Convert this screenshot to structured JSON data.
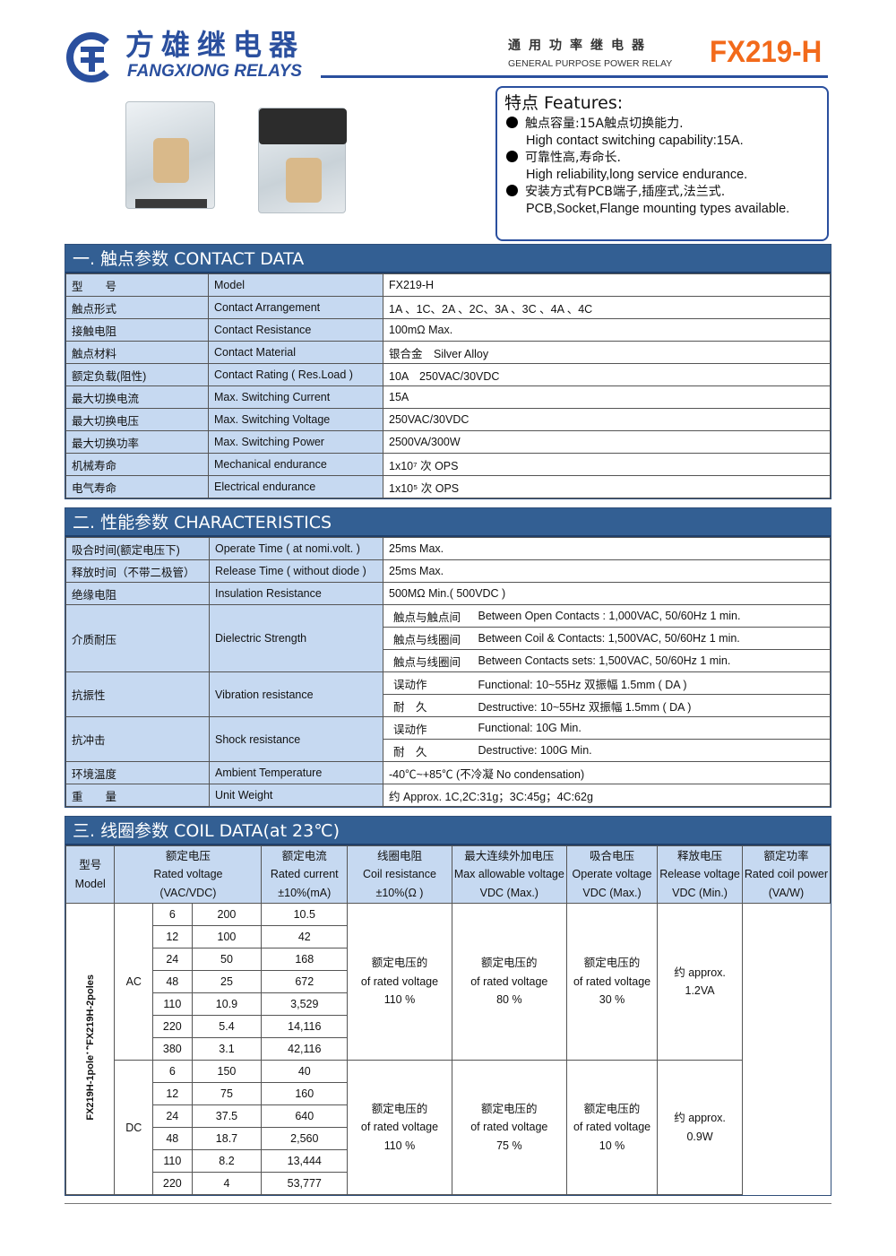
{
  "header": {
    "brand_cn": "方雄继电器",
    "brand_en": "FANGXIONG RELAYS",
    "subtitle_cn": "通用功率继电器",
    "subtitle_en": "GENERAL PURPOSE POWER RELAY",
    "model": "FX219-H",
    "accent": "#f26a1b",
    "brand_color": "#2a4f9e"
  },
  "features": {
    "title": "特点 Features:",
    "items": [
      {
        "cn": "触点容量:15A触点切换能力.",
        "en": "High contact switching capability:15A."
      },
      {
        "cn": "可靠性高,寿命长.",
        "en": "High reliability,long service endurance."
      },
      {
        "cn": "安装方式有PCB端子,插座式,法兰式.",
        "en": "PCB,Socket,Flange mounting types available."
      }
    ]
  },
  "contact": {
    "title": "一. 触点参数 CONTACT DATA",
    "rows": [
      [
        "型　　号",
        "Model",
        "FX219-H"
      ],
      [
        "触点形式",
        "Contact Arrangement",
        "1A 、1C、2A 、2C、3A 、3C 、4A 、4C"
      ],
      [
        "接触电阻",
        "Contact Resistance",
        "100mΩ Max."
      ],
      [
        "触点材料",
        "Contact Material",
        "银合金　Silver Alloy"
      ],
      [
        "额定负载(阻性)",
        "Contact Rating ( Res.Load )",
        "10A　250VAC/30VDC"
      ],
      [
        "最大切换电流",
        "Max. Switching Current",
        "15A"
      ],
      [
        "最大切换电压",
        "Max. Switching Voltage",
        "250VAC/30VDC"
      ],
      [
        "最大切换功率",
        "Max. Switching Power",
        "2500VA/300W"
      ],
      [
        "机械寿命",
        "Mechanical endurance",
        "1x10⁷ 次 OPS"
      ],
      [
        "电气寿命",
        "Electrical endurance",
        "1x10⁵ 次 OPS"
      ]
    ]
  },
  "characteristics": {
    "title": "二. 性能参数 CHARACTERISTICS",
    "rows": [
      {
        "cn": "吸合时间(额定电压下)",
        "en": "Operate Time ( at nomi.volt. )",
        "values": [
          [
            "",
            "25ms Max."
          ]
        ]
      },
      {
        "cn": "释放时间（不带二极管）",
        "en": "Release Time ( without diode )",
        "values": [
          [
            "",
            "25ms Max."
          ]
        ]
      },
      {
        "cn": "绝缘电阻",
        "en": "Insulation Resistance",
        "values": [
          [
            "",
            "500MΩ Min.( 500VDC )"
          ]
        ]
      },
      {
        "cn": "介质耐压",
        "en": "Dielectric Strength",
        "values": [
          [
            "触点与触点间",
            "Between Open Contacts : 1,000VAC, 50/60Hz 1 min."
          ],
          [
            "触点与线圈间",
            "Between Coil & Contacts:  1,500VAC, 50/60Hz 1 min."
          ],
          [
            "触点与线圈间",
            "Between Contacts sets:  1,500VAC, 50/60Hz 1 min."
          ]
        ]
      },
      {
        "cn": "抗振性",
        "en": "Vibration resistance",
        "values": [
          [
            "误动作",
            "Functional:   10~55Hz 双振幅 1.5mm ( DA )"
          ],
          [
            "耐　久",
            "Destructive: 10~55Hz 双振幅 1.5mm ( DA )"
          ]
        ]
      },
      {
        "cn": "抗冲击",
        "en": "Shock resistance",
        "values": [
          [
            "误动作",
            "Functional:    10G Min."
          ],
          [
            "耐　久",
            "Destructive:  100G Min."
          ]
        ]
      },
      {
        "cn": "环境温度",
        "en": "Ambient Temperature",
        "values": [
          [
            "",
            "-40℃~+85℃ (不冷凝  No condensation)"
          ]
        ]
      },
      {
        "cn": "重　　量",
        "en": "Unit Weight",
        "values": [
          [
            "",
            "约 Approx. 1C,2C:31g；3C:45g；4C:62g"
          ]
        ]
      }
    ]
  },
  "coil": {
    "title": "三. 线圈参数 COIL DATA(at 23℃)",
    "headers": [
      [
        "型号",
        "Model"
      ],
      [
        "额定电压",
        "Rated voltage",
        "(VAC/VDC)"
      ],
      [
        "额定电流",
        "Rated current",
        "±10%(mA)"
      ],
      [
        "线圈电阻",
        "Coil resistance",
        "±10%(Ω )"
      ],
      [
        "最大连续外加电压",
        "Max allowable voltage",
        "VDC  (Max.)"
      ],
      [
        "吸合电压",
        "Operate voltage",
        "VDC (Max.)"
      ],
      [
        "释放电压",
        "Release voltage",
        "VDC (Min.)"
      ],
      [
        "额定功率",
        "Rated coil power",
        "(VA/W)"
      ]
    ],
    "model_label": "FX219H-1pole；FX219H-2poles",
    "groups": [
      {
        "type": "AC",
        "rows": [
          [
            "6",
            "200",
            "10.5"
          ],
          [
            "12",
            "100",
            "42"
          ],
          [
            "24",
            "50",
            "168"
          ],
          [
            "48",
            "25",
            "672"
          ],
          [
            "110",
            "10.9",
            "3,529"
          ],
          [
            "220",
            "5.4",
            "14,116"
          ],
          [
            "380",
            "3.1",
            "42,116"
          ]
        ],
        "max": [
          "额定电压的",
          "of rated voltage",
          "110 %"
        ],
        "operate": [
          "额定电压的",
          "of rated voltage",
          "80 %"
        ],
        "release": [
          "额定电压的",
          "of rated voltage",
          "30 %"
        ],
        "power": [
          "约  approx.",
          "1.2VA"
        ]
      },
      {
        "type": "DC",
        "rows": [
          [
            "6",
            "150",
            "40"
          ],
          [
            "12",
            "75",
            "160"
          ],
          [
            "24",
            "37.5",
            "640"
          ],
          [
            "48",
            "18.7",
            "2,560"
          ],
          [
            "110",
            "8.2",
            "13,444"
          ],
          [
            "220",
            "4",
            "53,777"
          ]
        ],
        "max": [
          "额定电压的",
          "of rated voltage",
          "110 %"
        ],
        "operate": [
          "额定电压的",
          "of rated voltage",
          "75 %"
        ],
        "release": [
          "额定电压的",
          "of rated voltage",
          "10 %"
        ],
        "power": [
          "约  approx.",
          "0.9W"
        ]
      }
    ]
  }
}
